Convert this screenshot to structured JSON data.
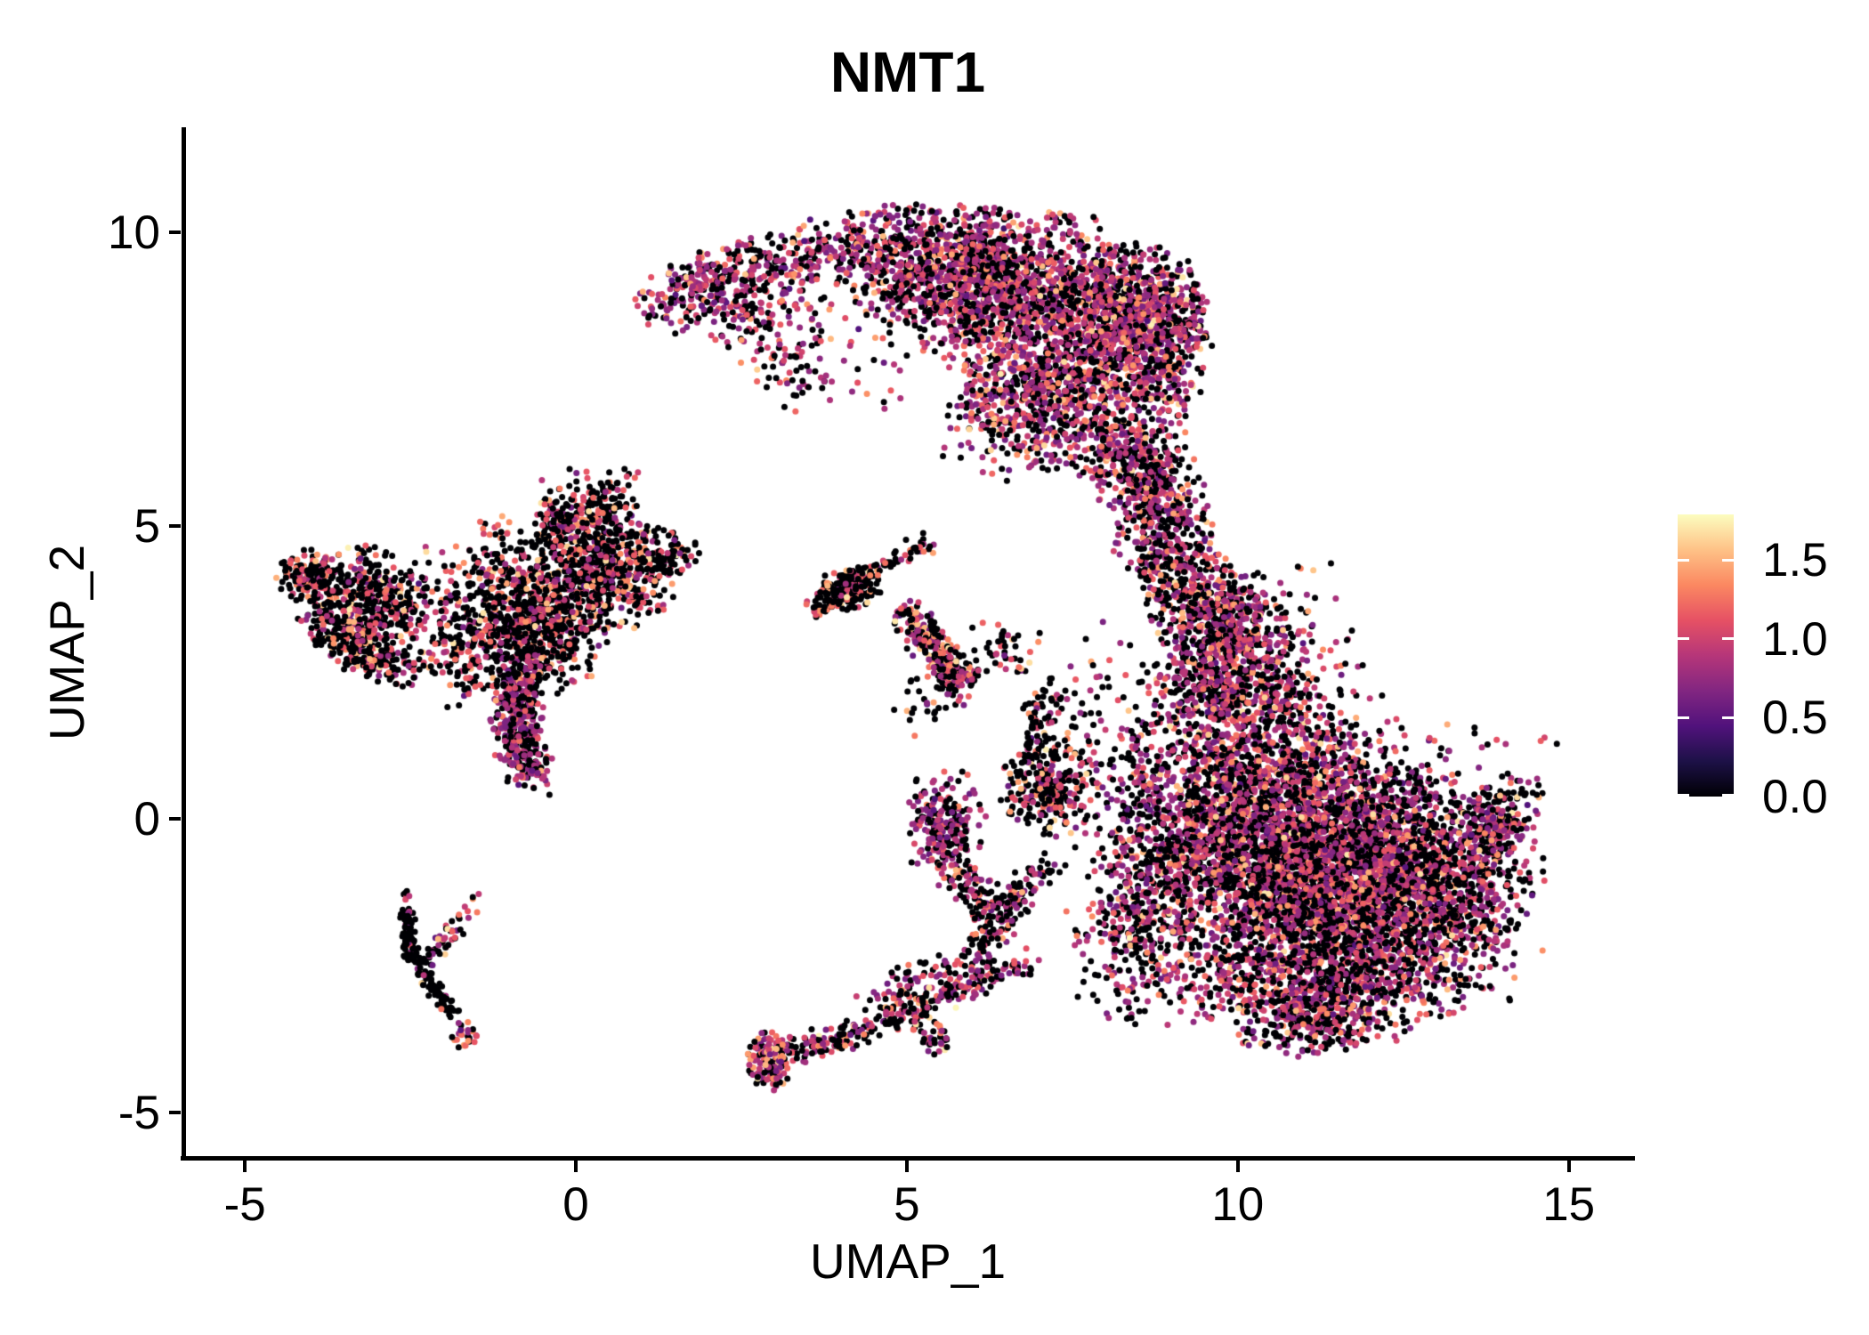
{
  "title": "NMT1",
  "axes": {
    "x": {
      "label": "UMAP_1",
      "ticks": [
        "-5",
        "0",
        "5",
        "10",
        "15"
      ],
      "tick_values": [
        -5,
        0,
        5,
        10,
        15
      ],
      "range": [
        -5.93,
        15.96
      ]
    },
    "y": {
      "label": "UMAP_2",
      "ticks": [
        "10",
        "5",
        "0",
        "-5"
      ],
      "tick_values": [
        10,
        5,
        0,
        -5
      ],
      "range": [
        -5.78,
        11.79
      ]
    }
  },
  "legend": {
    "ticks": [
      "1.5",
      "1.0",
      "0.5",
      "0.0"
    ],
    "tick_values": [
      1.5,
      1.0,
      0.5,
      0.0
    ],
    "vmax": 1.79,
    "colormap": "magma",
    "stops": [
      "#000004",
      "#1D1147",
      "#51127C",
      "#822681",
      "#B63679",
      "#E65164",
      "#FB8861",
      "#FEC287",
      "#FCFDBF"
    ]
  },
  "chart_data": {
    "type": "scatter",
    "title": "NMT1",
    "xlabel": "UMAP_1",
    "ylabel": "UMAP_2",
    "point_radius_px": 3.5,
    "seed": 42,
    "value_classes": {
      "means": [
        0.78,
        1.1,
        1.4,
        1.62
      ],
      "sds": [
        0.13,
        0.11,
        0.1,
        0.08
      ]
    },
    "color_profiles": {
      "right": {
        "p0": 0.45,
        "mix": [
          0.58,
          0.29,
          0.11,
          0.02
        ]
      },
      "arc": {
        "p0": 0.36,
        "mix": [
          0.6,
          0.28,
          0.1,
          0.02
        ]
      },
      "leftred": {
        "p0": 0.62,
        "mix": [
          0.3,
          0.47,
          0.18,
          0.05
        ]
      },
      "tailpur": {
        "p0": 0.33,
        "mix": [
          0.82,
          0.13,
          0.04,
          0.01
        ]
      },
      "streak": {
        "p0": 0.93,
        "mix": [
          0.6,
          0.25,
          0.1,
          0.05
        ]
      },
      "tendril": {
        "p0": 0.48,
        "mix": [
          0.48,
          0.3,
          0.16,
          0.06
        ]
      },
      "tipmix": {
        "p0": 0.28,
        "mix": [
          0.45,
          0.3,
          0.18,
          0.07
        ]
      },
      "starblk": {
        "p0": 0.7,
        "mix": [
          0.3,
          0.4,
          0.2,
          0.1
        ]
      },
      "branch": {
        "p0": 0.4,
        "mix": [
          0.5,
          0.25,
          0.2,
          0.05
        ]
      }
    },
    "clusters": [
      {
        "type": "strip",
        "n": 400,
        "pts": [
          [
            1.15,
            8.72
          ],
          [
            1.9,
            9.1
          ],
          [
            2.8,
            9.45
          ],
          [
            3.9,
            9.75
          ],
          [
            4.8,
            9.95
          ]
        ],
        "w": 0.26,
        "profile": "arc"
      },
      {
        "type": "blob",
        "n": 180,
        "x": 2.6,
        "y": 8.95,
        "sx": 0.7,
        "sy": 0.4,
        "profile": "arc"
      },
      {
        "type": "strip",
        "n": 80,
        "pts": [
          [
            2.25,
            8.55
          ],
          [
            2.9,
            7.9
          ],
          [
            3.45,
            7.3
          ]
        ],
        "w": 0.28,
        "profile": "arc"
      },
      {
        "type": "blob",
        "n": 620,
        "x": 5.5,
        "y": 9.4,
        "sx": 0.75,
        "sy": 0.5,
        "profile": "arc"
      },
      {
        "type": "blob",
        "n": 1250,
        "x": 6.9,
        "y": 8.9,
        "sx": 0.95,
        "sy": 0.7,
        "profile": "arc"
      },
      {
        "type": "blob",
        "n": 520,
        "x": 8.4,
        "y": 8.5,
        "sx": 0.5,
        "sy": 0.62,
        "profile": "arc"
      },
      {
        "type": "blob",
        "n": 280,
        "x": 9.0,
        "y": 8.1,
        "sx": 0.28,
        "sy": 0.72,
        "profile": "arc"
      },
      {
        "type": "blob",
        "n": 600,
        "x": 7.5,
        "y": 7.2,
        "sx": 0.75,
        "sy": 0.55,
        "profile": "arc"
      },
      {
        "type": "blob",
        "n": 200,
        "x": 6.5,
        "y": 6.9,
        "sx": 0.6,
        "sy": 0.55,
        "profile": "arc"
      },
      {
        "type": "strip",
        "n": 240,
        "pts": [
          [
            7.9,
            6.5
          ],
          [
            8.4,
            5.9
          ],
          [
            8.8,
            5.4
          ]
        ],
        "w": 0.35,
        "profile": "arc"
      },
      {
        "type": "blob",
        "n": 35,
        "x": 5.9,
        "y": 10.3,
        "sx": 0.85,
        "sy": 0.15,
        "profile": "arc"
      },
      {
        "type": "blob",
        "n": 50,
        "x": 4.6,
        "y": 8.1,
        "sx": 0.65,
        "sy": 0.6,
        "profile": "arc"
      },
      {
        "type": "blob",
        "n": 25,
        "x": 9.35,
        "y": 8.7,
        "sx": 0.12,
        "sy": 0.3,
        "profile": "arc"
      },
      {
        "type": "strip",
        "n": 700,
        "pts": [
          [
            8.6,
            6.4
          ],
          [
            8.75,
            5.5
          ],
          [
            8.95,
            4.6
          ],
          [
            9.3,
            3.8
          ],
          [
            9.8,
            3.2
          ]
        ],
        "w": 0.38,
        "profile": "right"
      },
      {
        "type": "blob",
        "n": 380,
        "x": 9.85,
        "y": 3.3,
        "sx": 0.5,
        "sy": 0.5,
        "profile": "right"
      },
      {
        "type": "blob",
        "n": 70,
        "x": 10.85,
        "y": 3.0,
        "sx": 0.45,
        "sy": 0.75,
        "profile": "right"
      },
      {
        "type": "blob",
        "n": 60,
        "x": 11.3,
        "y": 1.9,
        "sx": 0.5,
        "sy": 0.8,
        "profile": "right"
      },
      {
        "type": "blob",
        "n": 480,
        "x": 9.8,
        "y": 2.2,
        "sx": 0.6,
        "sy": 0.5,
        "profile": "right"
      },
      {
        "type": "blob",
        "n": 1350,
        "x": 10.3,
        "y": 0.4,
        "sx": 0.95,
        "sy": 0.95,
        "profile": "right"
      },
      {
        "type": "blob",
        "n": 2700,
        "x": 11.3,
        "y": -1.1,
        "sx": 1.2,
        "sy": 1.0,
        "profile": "right"
      },
      {
        "type": "blob",
        "n": 1300,
        "x": 12.6,
        "y": -0.9,
        "sx": 0.95,
        "sy": 0.8,
        "profile": "right"
      },
      {
        "type": "strip",
        "n": 200,
        "pts": [
          [
            13.5,
            -0.5
          ],
          [
            14.25,
            0.35
          ]
        ],
        "w": 0.26,
        "profile": "right"
      },
      {
        "type": "blob",
        "n": 650,
        "x": 11.2,
        "y": -2.9,
        "sx": 1.05,
        "sy": 0.5,
        "profile": "right"
      },
      {
        "type": "blob",
        "n": 150,
        "x": 11.3,
        "y": -3.55,
        "sx": 0.55,
        "sy": 0.25,
        "profile": "right"
      },
      {
        "type": "blob",
        "n": 420,
        "x": 8.75,
        "y": -0.4,
        "sx": 0.45,
        "sy": 1.1,
        "profile": "right"
      },
      {
        "type": "blob",
        "n": 270,
        "x": 8.45,
        "y": -2.1,
        "sx": 0.5,
        "sy": 0.75,
        "profile": "right"
      },
      {
        "type": "blob",
        "n": 90,
        "x": 12.3,
        "y": 1.1,
        "sx": 1.2,
        "sy": 0.4,
        "profile": "right"
      },
      {
        "type": "blob",
        "n": 120,
        "x": 13.3,
        "y": -2.2,
        "sx": 0.6,
        "sy": 0.6,
        "profile": "right"
      },
      {
        "type": "blob",
        "n": 230,
        "x": 5.55,
        "y": -0.1,
        "sx": 0.3,
        "sy": 0.5,
        "profile": "tailpur"
      },
      {
        "type": "strip",
        "n": 120,
        "pts": [
          [
            5.7,
            -0.8
          ],
          [
            6.1,
            -1.3
          ],
          [
            6.5,
            -1.8
          ]
        ],
        "w": 0.18,
        "profile": "tendril"
      },
      {
        "type": "blob",
        "n": 260,
        "x": 7.15,
        "y": 0.55,
        "sx": 0.35,
        "sy": 0.4,
        "profile": "leftred"
      },
      {
        "type": "strip",
        "n": 70,
        "pts": [
          [
            6.95,
            1.1
          ],
          [
            7.1,
            2.2
          ]
        ],
        "w": 0.14,
        "profile": "starblk"
      },
      {
        "type": "blob",
        "n": 35,
        "x": 6.5,
        "y": 2.9,
        "sx": 0.3,
        "sy": 0.3,
        "profile": "starblk"
      },
      {
        "type": "blob",
        "n": 90,
        "x": 7.8,
        "y": 1.5,
        "sx": 0.45,
        "sy": 1.0,
        "profile": "right"
      },
      {
        "type": "blob",
        "n": 150,
        "x": 4.15,
        "y": 3.95,
        "sx": 0.22,
        "sy": 0.18,
        "profile": "starblk"
      },
      {
        "type": "strip",
        "n": 40,
        "pts": [
          [
            3.55,
            3.75
          ],
          [
            4.15,
            3.95
          ]
        ],
        "w": 0.08,
        "profile": "starblk"
      },
      {
        "type": "strip",
        "n": 30,
        "pts": [
          [
            3.6,
            3.5
          ],
          [
            4.1,
            3.85
          ]
        ],
        "w": 0.07,
        "profile": "starblk"
      },
      {
        "type": "strip",
        "n": 30,
        "pts": [
          [
            4.3,
            4.1
          ],
          [
            4.8,
            4.4
          ]
        ],
        "w": 0.08,
        "profile": "starblk"
      },
      {
        "type": "strip",
        "n": 25,
        "pts": [
          [
            4.9,
            4.5
          ],
          [
            5.3,
            4.7
          ]
        ],
        "w": 0.1,
        "profile": "starblk"
      },
      {
        "type": "strip",
        "n": 280,
        "pts": [
          [
            5.0,
            3.5
          ],
          [
            5.3,
            3.05
          ],
          [
            5.6,
            2.6
          ],
          [
            5.9,
            2.25
          ]
        ],
        "w": 0.16,
        "profile": "tendril"
      },
      {
        "type": "blob",
        "n": 30,
        "x": 5.35,
        "y": 1.9,
        "sx": 0.25,
        "sy": 0.25,
        "profile": "starblk"
      },
      {
        "type": "blob",
        "n": 8,
        "x": 6.4,
        "y": 3.0,
        "sx": 0.12,
        "sy": 0.12,
        "profile": "starblk"
      },
      {
        "type": "blob",
        "n": 500,
        "x": -3.25,
        "y": 3.6,
        "sx": 0.45,
        "sy": 0.5,
        "profile": "leftred"
      },
      {
        "type": "strip",
        "n": 170,
        "pts": [
          [
            -3.75,
            3.2
          ],
          [
            -3.1,
            2.75
          ],
          [
            -2.6,
            2.55
          ]
        ],
        "w": 0.2,
        "profile": "leftred"
      },
      {
        "type": "blob",
        "n": 90,
        "x": -4.0,
        "y": 4.1,
        "sx": 0.22,
        "sy": 0.25,
        "profile": "leftred"
      },
      {
        "type": "strip",
        "n": 60,
        "pts": [
          [
            -4.35,
            4.25
          ],
          [
            -3.8,
            4.05
          ]
        ],
        "w": 0.12,
        "profile": "leftred"
      },
      {
        "type": "blob",
        "n": 130,
        "x": -2.1,
        "y": 3.4,
        "sx": 0.5,
        "sy": 0.65,
        "profile": "leftred"
      },
      {
        "type": "blob",
        "n": 800,
        "x": -0.75,
        "y": 3.3,
        "sx": 0.6,
        "sy": 0.6,
        "profile": "leftred"
      },
      {
        "type": "blob",
        "n": 560,
        "x": 0.55,
        "y": 4.3,
        "sx": 0.55,
        "sy": 0.5,
        "profile": "leftred"
      },
      {
        "type": "strip",
        "n": 90,
        "pts": [
          [
            -0.4,
            4.7
          ],
          [
            -0.1,
            5.55
          ]
        ],
        "w": 0.2,
        "profile": "leftred"
      },
      {
        "type": "strip",
        "n": 80,
        "pts": [
          [
            0.4,
            5.0
          ],
          [
            0.65,
            5.8
          ]
        ],
        "w": 0.16,
        "profile": "leftred"
      },
      {
        "type": "blob",
        "n": 70,
        "x": 0.1,
        "y": 5.15,
        "sx": 0.45,
        "sy": 0.4,
        "profile": "leftred"
      },
      {
        "type": "strip",
        "n": 70,
        "pts": [
          [
            1.1,
            4.3
          ],
          [
            1.7,
            4.55
          ]
        ],
        "w": 0.14,
        "profile": "leftred"
      },
      {
        "type": "strip",
        "n": 430,
        "pts": [
          [
            -0.72,
            2.55
          ],
          [
            -0.9,
            1.9
          ],
          [
            -0.85,
            1.2
          ],
          [
            -0.65,
            0.72
          ]
        ],
        "w": 0.2,
        "profile": "tailpur"
      },
      {
        "type": "blob",
        "n": 60,
        "x": -1.6,
        "y": 2.6,
        "sx": 0.4,
        "sy": 0.4,
        "profile": "leftred"
      },
      {
        "type": "blob",
        "n": 60,
        "x": -1.1,
        "y": 4.5,
        "sx": 0.3,
        "sy": 0.35,
        "profile": "leftred"
      },
      {
        "type": "strip",
        "n": 85,
        "pts": [
          [
            -2.56,
            -1.55
          ],
          [
            -2.52,
            -2.2
          ]
        ],
        "w": 0.06,
        "profile": "streak"
      },
      {
        "type": "strip",
        "n": 100,
        "pts": [
          [
            -2.5,
            -2.25
          ],
          [
            -2.28,
            -2.62
          ],
          [
            -2.08,
            -2.98
          ],
          [
            -1.88,
            -3.32
          ]
        ],
        "w": 0.07,
        "profile": "streak"
      },
      {
        "type": "blob",
        "n": 26,
        "x": -1.66,
        "y": -3.7,
        "sx": 0.1,
        "sy": 0.13,
        "profile": "tipmix"
      },
      {
        "type": "strip",
        "n": 48,
        "pts": [
          [
            -2.18,
            -2.38
          ],
          [
            -1.88,
            -1.95
          ],
          [
            -1.58,
            -1.55
          ]
        ],
        "w": 0.08,
        "profile": "branch"
      },
      {
        "type": "blob",
        "n": 6,
        "x": -2.57,
        "y": -1.33,
        "sx": 0.05,
        "sy": 0.08,
        "profile": "branch"
      },
      {
        "type": "blob",
        "n": 3,
        "x": -1.56,
        "y": -1.3,
        "sx": 0.05,
        "sy": 0.05,
        "profile": "branch"
      },
      {
        "type": "blob",
        "n": 150,
        "x": 2.95,
        "y": -4.15,
        "sx": 0.18,
        "sy": 0.25,
        "profile": "tipmix"
      },
      {
        "type": "strip",
        "n": 300,
        "pts": [
          [
            3.15,
            -3.95
          ],
          [
            3.9,
            -3.8
          ],
          [
            4.6,
            -3.5
          ],
          [
            5.35,
            -3.1
          ],
          [
            6.1,
            -2.75
          ],
          [
            6.8,
            -2.45
          ]
        ],
        "w": 0.13,
        "profile": "tendril"
      },
      {
        "type": "strip",
        "n": 80,
        "pts": [
          [
            4.5,
            -3.15
          ],
          [
            5.2,
            -2.8
          ],
          [
            5.9,
            -2.5
          ]
        ],
        "w": 0.18,
        "profile": "tendril"
      },
      {
        "type": "strip",
        "n": 140,
        "pts": [
          [
            6.0,
            -2.3
          ],
          [
            6.4,
            -1.75
          ],
          [
            6.8,
            -1.2
          ],
          [
            7.2,
            -0.7
          ]
        ],
        "w": 0.16,
        "profile": "tendril"
      },
      {
        "type": "strip",
        "n": 40,
        "pts": [
          [
            5.15,
            -3.5
          ],
          [
            5.6,
            -3.85
          ]
        ],
        "w": 0.12,
        "profile": "tendril"
      }
    ]
  }
}
